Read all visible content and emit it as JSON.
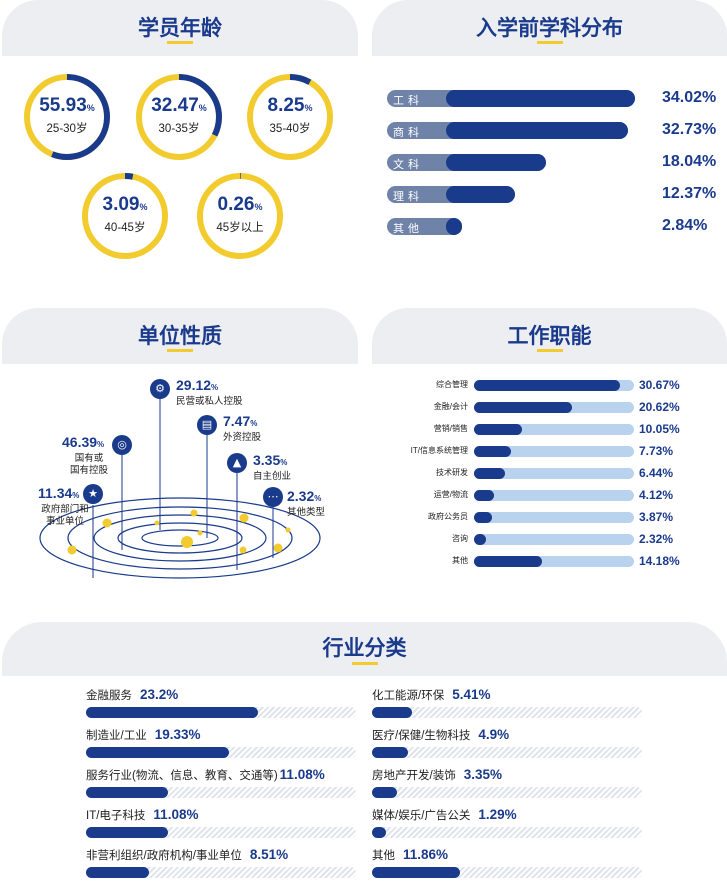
{
  "colors": {
    "navy": "#1a3a8c",
    "yellow": "#f2cb2e",
    "light_blue": "#b9d2ee",
    "slate": "#6f83a8",
    "panel_gray": "#eceef2"
  },
  "sections": {
    "age": "学员年龄",
    "subject": "入学前学科分布",
    "org": "单位性质",
    "role": "工作职能",
    "industry": "行业分类"
  },
  "age_circles": [
    {
      "value": "55.93",
      "unit": "%",
      "label": "25-30岁"
    },
    {
      "value": "32.47",
      "unit": "%",
      "label": "30-35岁"
    },
    {
      "value": "8.25",
      "unit": "%",
      "label": "35-40岁"
    },
    {
      "value": "3.09",
      "unit": "%",
      "label": "40-45岁"
    },
    {
      "value": "0.26",
      "unit": "%",
      "label": "45岁以上"
    }
  ],
  "org_items": [
    {
      "value": "29.12",
      "unit": "%",
      "label": "民营或私人控股",
      "icon": "handshake-icon"
    },
    {
      "value": "7.47",
      "unit": "%",
      "label": "外资控股",
      "icon": "building-icon"
    },
    {
      "value": "46.39",
      "unit": "%",
      "label": "国有或\n国有控股",
      "icon": "coins-icon"
    },
    {
      "value": "3.35",
      "unit": "%",
      "label": "自主创业",
      "icon": "rocket-icon"
    },
    {
      "value": "11.34",
      "unit": "%",
      "label": "政府部门和\n事业单位",
      "icon": "government-icon"
    },
    {
      "value": "2.32",
      "unit": "%",
      "label": "其他类型",
      "icon": "more-icon"
    }
  ],
  "chart_data": [
    {
      "type": "bar",
      "title": "入学前学科分布",
      "categories": [
        "工科",
        "商科",
        "文科",
        "理科",
        "其他"
      ],
      "values": [
        34.02,
        32.73,
        18.04,
        12.37,
        2.84
      ],
      "value_labels": [
        "34.02%",
        "32.73%",
        "18.04%",
        "12.37%",
        "2.84%"
      ]
    },
    {
      "type": "bar",
      "title": "工作职能",
      "categories": [
        "综合管理",
        "金融/会计",
        "营销/销售",
        "IT/信息系统管理",
        "技术研发",
        "运营/物流",
        "政府公务员",
        "咨询",
        "其他"
      ],
      "values": [
        30.67,
        20.62,
        10.05,
        7.73,
        6.44,
        4.12,
        3.87,
        2.32,
        14.18
      ],
      "value_labels": [
        "30.67%",
        "20.62%",
        "10.05%",
        "7.73%",
        "6.44%",
        "4.12%",
        "3.87%",
        "2.32%",
        "14.18%"
      ]
    },
    {
      "type": "bar",
      "title": "行业分类",
      "categories": [
        "金融服务",
        "制造业/工业",
        "服务行业(物流、信息、教育、交通等)",
        "IT/电子科技",
        "非营利组织/政府机构/事业单位",
        "化工能源/环保",
        "医疗/保健/生物科技",
        "房地产开发/装饰",
        "媒体/娱乐/广告公关",
        "其他"
      ],
      "values": [
        23.2,
        19.33,
        11.08,
        11.08,
        8.51,
        5.41,
        4.9,
        3.35,
        1.29,
        11.86
      ],
      "value_labels": [
        "23.2%",
        "19.33%",
        "11.08%",
        "11.08%",
        "8.51%",
        "5.41%",
        "4.9%",
        "3.35%",
        "1.29%",
        "11.86%"
      ]
    }
  ]
}
